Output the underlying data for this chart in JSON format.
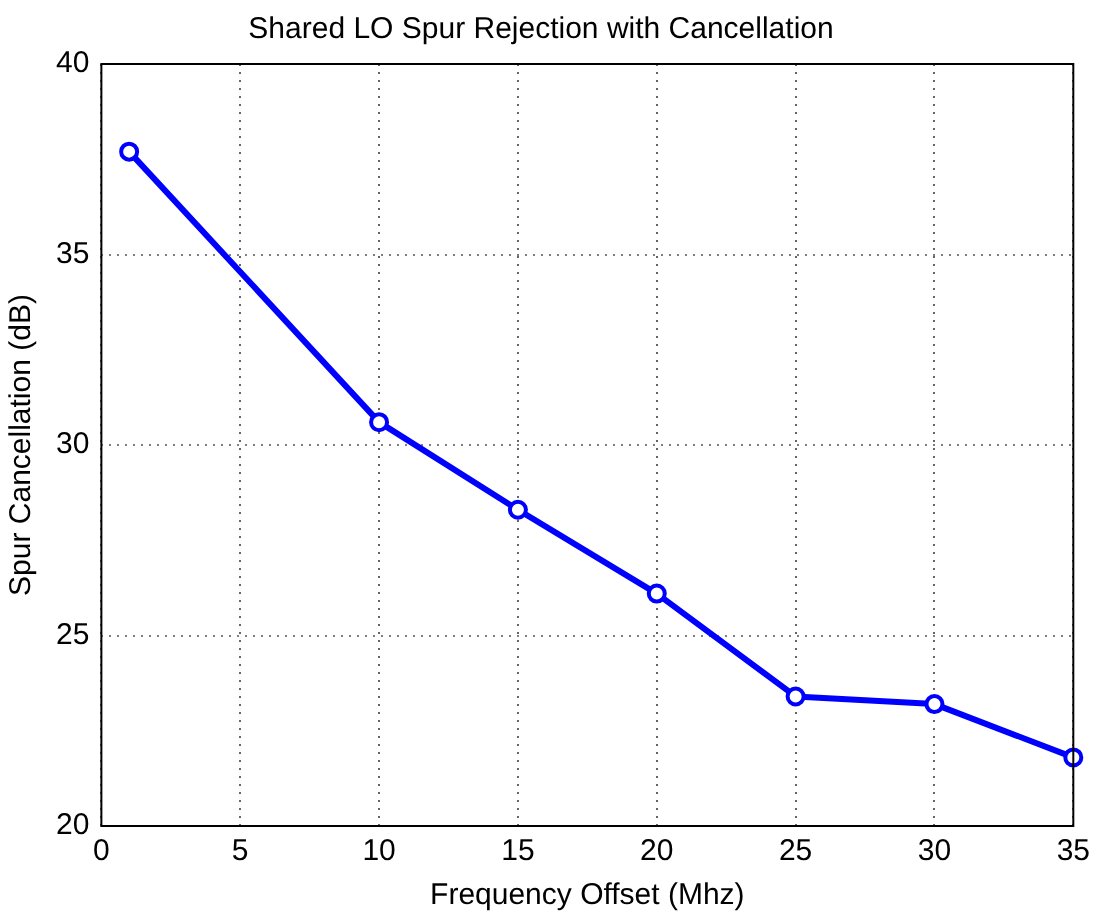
{
  "chart_data": {
    "type": "line",
    "title": "Shared LO Spur Rejection with Cancellation",
    "xlabel": "Frequency Offset (Mhz)",
    "ylabel": "Spur Cancellation (dB)",
    "x": [
      1,
      10,
      15,
      20,
      25,
      30,
      35
    ],
    "series": [
      {
        "color": "#0000ff",
        "values": [
          37.7,
          30.6,
          28.3,
          26.1,
          23.4,
          23.2,
          21.8
        ]
      }
    ],
    "xlim": [
      0,
      35
    ],
    "xticks": [
      0,
      5,
      10,
      15,
      20,
      25,
      30,
      35
    ],
    "ylim": [
      20,
      40
    ],
    "yticks": [
      20,
      25,
      30,
      35,
      40
    ],
    "grid": true,
    "marker": "circle",
    "line_style": "solid",
    "legend": false
  }
}
